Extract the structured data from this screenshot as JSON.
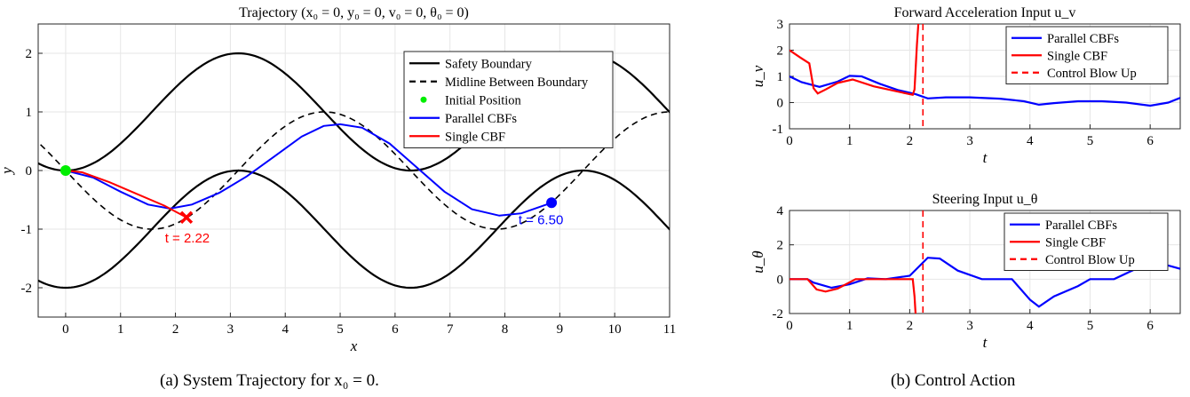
{
  "panel_a": {
    "caption": "(a) System Trajectory for x₀ = 0."
  },
  "panel_b": {
    "caption": "(b) Control Action"
  },
  "colors": {
    "boundary": "#000000",
    "parallel": "#0000ff",
    "single": "#ff0000",
    "initial": "#00ee00"
  },
  "chart_data": [
    {
      "type": "line",
      "title": "Trajectory (x₀ = 0, y₀ = 0, v₀ = 0, θ₀ = 0)",
      "xlabel": "x",
      "ylabel": "y",
      "xlim": [
        -0.5,
        11
      ],
      "ylim": [
        -2.5,
        2.5
      ],
      "xticks": [
        "0",
        "1",
        "2",
        "3",
        "4",
        "5",
        "6",
        "7",
        "8",
        "9",
        "10",
        "11"
      ],
      "yticks": [
        "-2",
        "-1",
        "0",
        "1",
        "2"
      ],
      "grid": true,
      "legend_position": "top-right",
      "series": [
        {
          "name": "Safety Boundary",
          "style": "solid",
          "color": "#000000",
          "function": "1 - cos(x) upper, -1 - cos(x) lower"
        },
        {
          "name": "Midline Between Boundary",
          "style": "dashed",
          "color": "#000000",
          "function": "-sin(x)"
        },
        {
          "name": "Initial Position",
          "style": "marker",
          "color": "#00ee00",
          "points": [
            [
              0,
              0
            ]
          ]
        },
        {
          "name": "Parallel CBFs",
          "style": "solid",
          "color": "#0000ff",
          "points": [
            [
              0,
              0
            ],
            [
              0.5,
              -0.12
            ],
            [
              1,
              -0.36
            ],
            [
              1.5,
              -0.58
            ],
            [
              1.9,
              -0.65
            ],
            [
              2.3,
              -0.58
            ],
            [
              2.8,
              -0.38
            ],
            [
              3.3,
              -0.1
            ],
            [
              3.8,
              0.24
            ],
            [
              4.3,
              0.58
            ],
            [
              4.7,
              0.76
            ],
            [
              5.0,
              0.79
            ],
            [
              5.4,
              0.73
            ],
            [
              5.9,
              0.46
            ],
            [
              6.4,
              0.05
            ],
            [
              6.9,
              -0.36
            ],
            [
              7.4,
              -0.66
            ],
            [
              7.9,
              -0.77
            ],
            [
              8.3,
              -0.73
            ],
            [
              8.85,
              -0.55
            ]
          ]
        },
        {
          "name": "Single CBF",
          "style": "solid",
          "color": "#ff0000",
          "points": [
            [
              0,
              0
            ],
            [
              0.3,
              -0.03
            ],
            [
              0.8,
              -0.2
            ],
            [
              1.3,
              -0.4
            ],
            [
              1.8,
              -0.6
            ],
            [
              2.2,
              -0.8
            ]
          ]
        }
      ],
      "annotations": [
        {
          "text": "t = 2.22",
          "x": 2.2,
          "y": -0.8,
          "color": "#ff0000",
          "marker": "cross"
        },
        {
          "text": "t = 6.50",
          "x": 8.85,
          "y": -0.55,
          "color": "#0000ff",
          "marker": "dot"
        }
      ]
    },
    {
      "type": "line",
      "title": "Forward Acceleration Input u_v",
      "xlabel": "t",
      "ylabel": "u_v",
      "xlim": [
        0,
        6.5
      ],
      "ylim": [
        -1,
        3
      ],
      "xticks": [
        "0",
        "1",
        "2",
        "3",
        "4",
        "5",
        "6"
      ],
      "yticks": [
        "-1",
        "0",
        "1",
        "2",
        "3"
      ],
      "grid": true,
      "legend_position": "top-right",
      "series": [
        {
          "name": "Parallel CBFs",
          "style": "solid",
          "color": "#0000ff",
          "points": [
            [
              0,
              1.0
            ],
            [
              0.2,
              0.78
            ],
            [
              0.5,
              0.6
            ],
            [
              0.8,
              0.8
            ],
            [
              1.0,
              1.02
            ],
            [
              1.2,
              1.0
            ],
            [
              1.5,
              0.72
            ],
            [
              1.8,
              0.48
            ],
            [
              2.1,
              0.32
            ],
            [
              2.3,
              0.16
            ],
            [
              2.6,
              0.2
            ],
            [
              3.0,
              0.2
            ],
            [
              3.5,
              0.15
            ],
            [
              3.9,
              0.05
            ],
            [
              4.15,
              -0.08
            ],
            [
              4.4,
              -0.02
            ],
            [
              4.8,
              0.05
            ],
            [
              5.2,
              0.05
            ],
            [
              5.6,
              0.0
            ],
            [
              6.0,
              -0.12
            ],
            [
              6.3,
              0.0
            ],
            [
              6.5,
              0.18
            ]
          ]
        },
        {
          "name": "Single CBF",
          "style": "solid",
          "color": "#ff0000",
          "points": [
            [
              0,
              2.0
            ],
            [
              0.18,
              1.72
            ],
            [
              0.33,
              1.5
            ],
            [
              0.4,
              0.55
            ],
            [
              0.47,
              0.35
            ],
            [
              0.6,
              0.5
            ],
            [
              0.8,
              0.75
            ],
            [
              1.05,
              0.88
            ],
            [
              1.4,
              0.62
            ],
            [
              1.8,
              0.42
            ],
            [
              2.05,
              0.3
            ],
            [
              2.08,
              0.5
            ],
            [
              2.12,
              2.2
            ],
            [
              2.15,
              3.2
            ]
          ]
        },
        {
          "name": "Control Blow Up",
          "style": "dashed",
          "color": "#ff0000",
          "vertical_x": 2.22
        }
      ]
    },
    {
      "type": "line",
      "title": "Steering Input u_θ",
      "xlabel": "t",
      "ylabel": "u_θ",
      "xlim": [
        0,
        6.5
      ],
      "ylim": [
        -2,
        4
      ],
      "xticks": [
        "0",
        "1",
        "2",
        "3",
        "4",
        "5",
        "6"
      ],
      "yticks": [
        "-2",
        "0",
        "2",
        "4"
      ],
      "grid": true,
      "legend_position": "top-right",
      "series": [
        {
          "name": "Parallel CBFs",
          "style": "solid",
          "color": "#0000ff",
          "points": [
            [
              0,
              0
            ],
            [
              0.3,
              0
            ],
            [
              0.4,
              -0.2
            ],
            [
              0.7,
              -0.5
            ],
            [
              1.0,
              -0.3
            ],
            [
              1.3,
              0.05
            ],
            [
              1.6,
              0
            ],
            [
              2.0,
              0.2
            ],
            [
              2.3,
              1.25
            ],
            [
              2.5,
              1.2
            ],
            [
              2.8,
              0.5
            ],
            [
              3.2,
              0
            ],
            [
              3.7,
              0
            ],
            [
              4.0,
              -1.2
            ],
            [
              4.15,
              -1.6
            ],
            [
              4.4,
              -1.0
            ],
            [
              4.8,
              -0.4
            ],
            [
              5.0,
              0
            ],
            [
              5.4,
              0
            ],
            [
              5.7,
              0.5
            ],
            [
              6.0,
              1.0
            ],
            [
              6.3,
              0.8
            ],
            [
              6.5,
              0.6
            ]
          ]
        },
        {
          "name": "Single CBF",
          "style": "solid",
          "color": "#ff0000",
          "points": [
            [
              0,
              0
            ],
            [
              0.3,
              0
            ],
            [
              0.45,
              -0.6
            ],
            [
              0.6,
              -0.72
            ],
            [
              0.8,
              -0.55
            ],
            [
              1.1,
              0
            ],
            [
              1.5,
              0
            ],
            [
              2.05,
              0
            ],
            [
              2.08,
              -1.0
            ],
            [
              2.1,
              -2.2
            ]
          ]
        },
        {
          "name": "Control Blow Up",
          "style": "dashed",
          "color": "#ff0000",
          "vertical_x": 2.22
        }
      ]
    }
  ]
}
